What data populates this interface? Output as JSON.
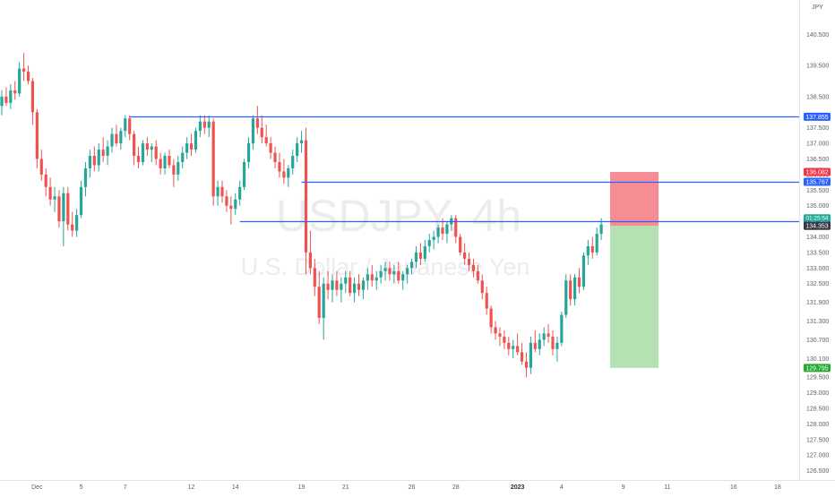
{
  "chart_data": {
    "type": "candlestick",
    "watermark": {
      "symbol": "USDJPY, 4h",
      "name": "U.S. Dollar / Japanese Yen"
    },
    "currency_label": "JPY",
    "y_axis": {
      "range": [
        126.2,
        141.6
      ],
      "ticks": [
        "140.500",
        "139.500",
        "138.500",
        "137.500",
        "137.000",
        "136.500",
        "136.000",
        "135.500",
        "135.000",
        "134.000",
        "133.500",
        "133.000",
        "132.500",
        "131.900",
        "131.300",
        "130.700",
        "130.100",
        "129.500",
        "129.000",
        "128.500",
        "128.000",
        "127.500",
        "127.000",
        "126.500"
      ]
    },
    "x_axis": {
      "ticks": [
        {
          "label": "Dec",
          "bar": 8,
          "bold": false
        },
        {
          "label": "5",
          "bar": 18,
          "bold": false
        },
        {
          "label": "7",
          "bar": 28,
          "bold": false
        },
        {
          "label": "12",
          "bar": 43,
          "bold": false
        },
        {
          "label": "14",
          "bar": 53,
          "bold": false
        },
        {
          "label": "19",
          "bar": 68,
          "bold": false
        },
        {
          "label": "21",
          "bar": 78,
          "bold": false
        },
        {
          "label": "26",
          "bar": 93,
          "bold": false
        },
        {
          "label": "28",
          "bar": 103,
          "bold": false
        },
        {
          "label": "2023",
          "bar": 117,
          "bold": true
        },
        {
          "label": "4",
          "bar": 127,
          "bold": false
        },
        {
          "label": "9",
          "bar": 141,
          "bold": false
        },
        {
          "label": "11",
          "bar": 151,
          "bold": false
        },
        {
          "label": "16",
          "bar": 166,
          "bold": false
        },
        {
          "label": "18",
          "bar": 176,
          "bold": false
        }
      ]
    },
    "horizontal_lines": [
      {
        "price": 137.855,
        "from_bar": 29,
        "label": "137.855",
        "color": "#2962ff"
      },
      {
        "price": 135.767,
        "from_bar": 68,
        "label": "135.767",
        "color": "#2962ff"
      },
      {
        "price": 134.507,
        "from_bar": 54,
        "label": "134.507",
        "color": "#2962ff"
      }
    ],
    "position": {
      "from_bar": 138,
      "to_bar": 149,
      "entry": 134.353,
      "stop": 136.082,
      "target": 129.795,
      "stop_label": "136.082",
      "target_label": "129.795"
    },
    "last_price": {
      "value": 134.353,
      "label": "134.353",
      "countdown": "01:25:54"
    },
    "colors": {
      "up": "#26a69a",
      "down": "#ef5350",
      "level_line": "#2962ff",
      "stop_zone": "#f57f88",
      "target_zone": "#b1e0ae",
      "stop_badge": "#f23645",
      "target_badge": "#22ab2c",
      "last_badge": "#363a45"
    },
    "ohlc": [
      [
        138.2,
        138.7,
        137.9,
        138.5
      ],
      [
        138.5,
        138.8,
        138.2,
        138.3
      ],
      [
        138.3,
        138.9,
        138.1,
        138.7
      ],
      [
        138.7,
        139.0,
        138.4,
        138.6
      ],
      [
        138.6,
        139.6,
        138.5,
        139.4
      ],
      [
        139.4,
        139.9,
        139.0,
        139.3
      ],
      [
        139.3,
        139.5,
        138.9,
        139.0
      ],
      [
        139.0,
        139.1,
        137.6,
        138.0
      ],
      [
        138.0,
        138.1,
        136.2,
        136.5
      ],
      [
        136.5,
        136.8,
        135.8,
        136.0
      ],
      [
        136.0,
        136.2,
        135.3,
        135.6
      ],
      [
        135.6,
        135.9,
        135.0,
        135.2
      ],
      [
        135.2,
        135.6,
        134.8,
        135.3
      ],
      [
        135.3,
        135.5,
        134.3,
        134.5
      ],
      [
        134.5,
        135.6,
        133.7,
        135.4
      ],
      [
        135.4,
        135.6,
        134.2,
        134.4
      ],
      [
        134.4,
        134.8,
        134.0,
        134.2
      ],
      [
        134.2,
        134.9,
        134.0,
        134.7
      ],
      [
        134.7,
        135.8,
        134.6,
        135.6
      ],
      [
        135.6,
        136.4,
        135.3,
        136.2
      ],
      [
        136.2,
        136.8,
        135.9,
        136.6
      ],
      [
        136.6,
        136.9,
        136.1,
        136.3
      ],
      [
        136.3,
        137.0,
        136.1,
        136.8
      ],
      [
        136.8,
        137.2,
        136.4,
        136.6
      ],
      [
        136.6,
        137.1,
        136.3,
        136.9
      ],
      [
        136.9,
        137.5,
        136.7,
        137.3
      ],
      [
        137.3,
        137.6,
        136.9,
        137.0
      ],
      [
        137.0,
        137.5,
        136.8,
        137.4
      ],
      [
        137.4,
        137.9,
        137.2,
        137.8
      ],
      [
        137.8,
        137.9,
        137.1,
        137.3
      ],
      [
        137.3,
        137.4,
        136.3,
        136.6
      ],
      [
        136.6,
        136.9,
        136.2,
        136.4
      ],
      [
        136.4,
        137.1,
        136.3,
        137.0
      ],
      [
        137.0,
        137.2,
        136.6,
        136.8
      ],
      [
        136.8,
        137.0,
        136.4,
        136.9
      ],
      [
        136.9,
        137.1,
        136.3,
        136.5
      ],
      [
        136.5,
        136.7,
        136.0,
        136.2
      ],
      [
        136.2,
        136.7,
        136.0,
        136.6
      ],
      [
        136.6,
        136.8,
        136.2,
        136.3
      ],
      [
        136.3,
        136.5,
        135.6,
        136.0
      ],
      [
        136.0,
        136.6,
        135.8,
        136.4
      ],
      [
        136.4,
        136.9,
        136.2,
        136.7
      ],
      [
        136.7,
        137.2,
        136.5,
        137.0
      ],
      [
        137.0,
        137.3,
        136.6,
        136.8
      ],
      [
        136.8,
        137.5,
        136.7,
        137.4
      ],
      [
        137.4,
        137.9,
        137.2,
        137.7
      ],
      [
        137.7,
        137.9,
        137.3,
        137.5
      ],
      [
        137.5,
        137.9,
        137.2,
        137.7
      ],
      [
        137.7,
        137.8,
        135.0,
        135.3
      ],
      [
        135.3,
        135.8,
        135.0,
        135.6
      ],
      [
        135.6,
        135.8,
        135.1,
        135.3
      ],
      [
        135.3,
        135.5,
        134.8,
        135.0
      ],
      [
        135.0,
        135.3,
        134.4,
        134.9
      ],
      [
        134.9,
        135.4,
        134.7,
        135.2
      ],
      [
        135.2,
        135.8,
        135.0,
        135.6
      ],
      [
        135.6,
        136.5,
        135.5,
        136.4
      ],
      [
        136.4,
        137.2,
        136.2,
        137.0
      ],
      [
        137.0,
        137.9,
        136.8,
        137.8
      ],
      [
        137.8,
        138.2,
        137.3,
        137.5
      ],
      [
        137.5,
        137.9,
        137.0,
        137.2
      ],
      [
        137.2,
        137.6,
        136.9,
        137.0
      ],
      [
        137.0,
        137.2,
        136.5,
        136.7
      ],
      [
        136.7,
        136.9,
        136.2,
        136.4
      ],
      [
        136.4,
        136.7,
        135.9,
        136.1
      ],
      [
        136.1,
        136.5,
        135.7,
        135.9
      ],
      [
        135.9,
        136.3,
        135.6,
        136.2
      ],
      [
        136.2,
        136.8,
        136.0,
        136.6
      ],
      [
        136.6,
        137.2,
        136.4,
        137.0
      ],
      [
        137.0,
        137.4,
        136.7,
        137.1
      ],
      [
        137.1,
        137.5,
        132.8,
        133.5
      ],
      [
        133.5,
        134.2,
        132.8,
        133.0
      ],
      [
        133.0,
        133.3,
        132.1,
        132.4
      ],
      [
        132.4,
        132.9,
        131.2,
        131.4
      ],
      [
        131.4,
        132.7,
        130.7,
        132.5
      ],
      [
        132.5,
        132.9,
        132.0,
        132.3
      ],
      [
        132.3,
        132.8,
        131.9,
        132.6
      ],
      [
        132.6,
        132.9,
        132.1,
        132.3
      ],
      [
        132.3,
        132.7,
        131.9,
        132.5
      ],
      [
        132.5,
        132.9,
        132.2,
        132.7
      ],
      [
        132.7,
        132.9,
        132.1,
        132.2
      ],
      [
        132.2,
        132.7,
        131.9,
        132.5
      ],
      [
        132.5,
        132.8,
        132.1,
        132.3
      ],
      [
        132.3,
        132.7,
        132.0,
        132.6
      ],
      [
        132.6,
        133.0,
        132.3,
        132.8
      ],
      [
        132.8,
        133.1,
        132.4,
        132.6
      ],
      [
        132.6,
        132.9,
        132.3,
        132.7
      ],
      [
        132.7,
        133.1,
        132.5,
        132.9
      ],
      [
        132.9,
        133.2,
        132.6,
        133.0
      ],
      [
        133.0,
        133.2,
        132.6,
        132.8
      ],
      [
        132.8,
        133.1,
        132.5,
        132.9
      ],
      [
        132.9,
        133.2,
        132.5,
        132.6
      ],
      [
        132.6,
        132.9,
        132.3,
        132.8
      ],
      [
        132.8,
        133.1,
        132.5,
        133.0
      ],
      [
        133.0,
        133.3,
        132.8,
        133.2
      ],
      [
        133.2,
        133.7,
        133.0,
        133.5
      ],
      [
        133.5,
        133.8,
        133.1,
        133.3
      ],
      [
        133.3,
        133.9,
        133.2,
        133.7
      ],
      [
        133.7,
        134.1,
        133.5,
        133.9
      ],
      [
        133.9,
        134.2,
        133.6,
        134.0
      ],
      [
        134.0,
        134.4,
        133.8,
        134.3
      ],
      [
        134.3,
        134.6,
        133.9,
        134.1
      ],
      [
        134.1,
        134.5,
        133.8,
        134.4
      ],
      [
        134.4,
        134.7,
        134.2,
        134.6
      ],
      [
        134.6,
        134.7,
        133.8,
        134.0
      ],
      [
        134.0,
        134.1,
        133.4,
        133.5
      ],
      [
        133.5,
        133.8,
        133.1,
        133.3
      ],
      [
        133.3,
        133.5,
        132.9,
        133.1
      ],
      [
        133.1,
        133.3,
        132.7,
        132.9
      ],
      [
        132.9,
        133.1,
        132.5,
        132.6
      ],
      [
        132.6,
        132.8,
        132.0,
        132.2
      ],
      [
        132.2,
        132.4,
        131.5,
        131.7
      ],
      [
        131.7,
        131.8,
        130.9,
        131.1
      ],
      [
        131.1,
        131.3,
        130.7,
        130.9
      ],
      [
        130.9,
        131.1,
        130.5,
        130.8
      ],
      [
        130.8,
        131.0,
        130.4,
        130.6
      ],
      [
        130.6,
        130.8,
        130.2,
        130.4
      ],
      [
        130.4,
        130.7,
        130.1,
        130.5
      ],
      [
        130.5,
        130.9,
        130.2,
        130.3
      ],
      [
        130.3,
        130.6,
        129.9,
        130.0
      ],
      [
        130.0,
        130.3,
        129.5,
        129.8
      ],
      [
        129.8,
        130.8,
        129.6,
        130.6
      ],
      [
        130.6,
        131.0,
        130.3,
        130.4
      ],
      [
        130.4,
        130.9,
        130.2,
        130.7
      ],
      [
        130.7,
        131.1,
        130.5,
        130.9
      ],
      [
        130.9,
        131.2,
        130.6,
        130.8
      ],
      [
        130.8,
        131.0,
        130.2,
        130.4
      ],
      [
        130.4,
        130.8,
        130.0,
        130.6
      ],
      [
        130.6,
        131.6,
        130.5,
        131.5
      ],
      [
        131.5,
        132.8,
        131.4,
        132.6
      ],
      [
        132.6,
        132.8,
        131.8,
        132.0
      ],
      [
        132.0,
        132.8,
        131.8,
        132.7
      ],
      [
        132.7,
        133.0,
        132.2,
        132.4
      ],
      [
        132.4,
        133.5,
        132.3,
        133.4
      ],
      [
        133.4,
        133.9,
        133.1,
        133.7
      ],
      [
        133.7,
        134.0,
        133.3,
        133.5
      ],
      [
        133.5,
        134.3,
        133.4,
        134.1
      ],
      [
        134.1,
        134.6,
        133.9,
        134.4
      ]
    ]
  }
}
